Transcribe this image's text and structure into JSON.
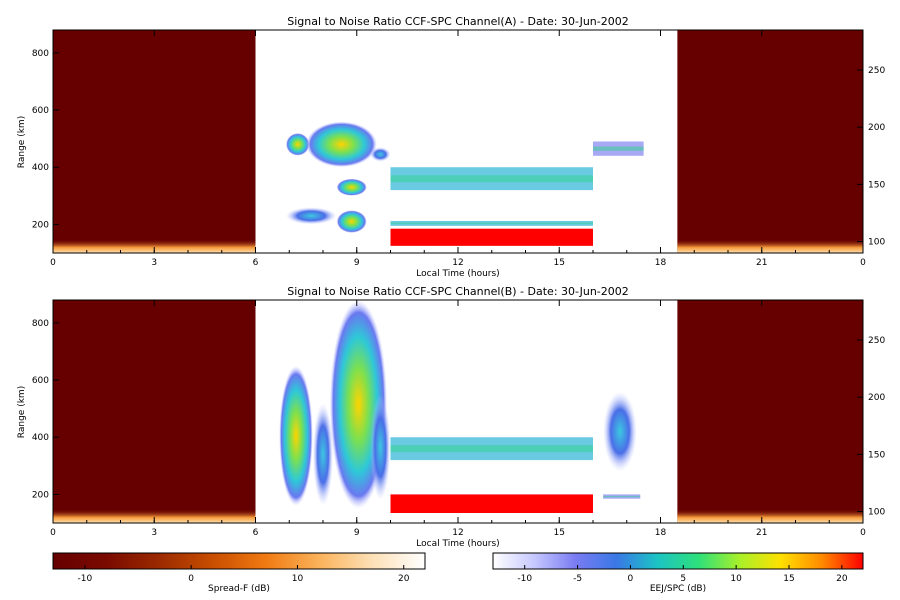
{
  "chart_data": [
    {
      "type": "heatmap",
      "title": "Signal to Noise Ratio CCF-SPC Channel(A) - Date: 30-Jun-2002",
      "xlabel": "Local Time (hours)",
      "ylabel": "Range (km)",
      "x_tick_labels": [
        "0",
        "3",
        "6",
        "9",
        "12",
        "15",
        "18",
        "21",
        "0"
      ],
      "x_ticks_hours": [
        0,
        3,
        6,
        9,
        12,
        15,
        18,
        21,
        24
      ],
      "xlim_hours": [
        0,
        24
      ],
      "ylim_left": [
        100,
        880
      ],
      "y_left_ticks": [
        200,
        400,
        600,
        800
      ],
      "ylim_right": [
        90,
        285
      ],
      "y_right_ticks": [
        100,
        150,
        200,
        250
      ],
      "regions": {
        "spreadF_night": [
          [
            0,
            6
          ],
          [
            18.5,
            24
          ]
        ],
        "ejspc_day": [
          6,
          18.5
        ]
      },
      "echoes": [
        {
          "kind": "blob",
          "t": [
            6.9,
            7.6
          ],
          "r": [
            440,
            520
          ],
          "level": 0.35
        },
        {
          "kind": "blob",
          "t": [
            7.5,
            9.6
          ],
          "r": [
            400,
            560
          ],
          "level": 0.55
        },
        {
          "kind": "blob",
          "t": [
            8.4,
            9.3
          ],
          "r": [
            300,
            360
          ],
          "level": 0.35
        },
        {
          "kind": "blob",
          "t": [
            8.4,
            9.3
          ],
          "r": [
            170,
            250
          ],
          "level": 0.35
        },
        {
          "kind": "blob",
          "t": [
            6.9,
            8.4
          ],
          "r": [
            200,
            260
          ],
          "level": 0.25
        },
        {
          "kind": "blob",
          "t": [
            9.4,
            10.0
          ],
          "r": [
            420,
            470
          ],
          "level": 0.25
        },
        {
          "kind": "band",
          "t": [
            10.0,
            16.0
          ],
          "r": [
            320,
            400
          ],
          "level": 0.3
        },
        {
          "kind": "band",
          "t": [
            16.0,
            17.5
          ],
          "r": [
            440,
            490
          ],
          "level": 0.1
        },
        {
          "kind": "band",
          "t": [
            10.0,
            16.0
          ],
          "r": [
            195,
            212
          ],
          "level": 0.3
        },
        {
          "kind": "rect",
          "t": [
            10.0,
            16.0
          ],
          "r": [
            125,
            185
          ],
          "level": 1.0
        }
      ]
    },
    {
      "type": "heatmap",
      "title": "Signal to Noise Ratio CCF-SPC Channel(B) - Date: 30-Jun-2002",
      "xlabel": "Local Time (hours)",
      "ylabel": "Range (km)",
      "x_tick_labels": [
        "0",
        "3",
        "6",
        "9",
        "12",
        "15",
        "18",
        "21",
        "0"
      ],
      "x_ticks_hours": [
        0,
        3,
        6,
        9,
        12,
        15,
        18,
        21,
        24
      ],
      "xlim_hours": [
        0,
        24
      ],
      "ylim_left": [
        100,
        880
      ],
      "y_left_ticks": [
        200,
        400,
        600,
        800
      ],
      "ylim_right": [
        90,
        285
      ],
      "y_right_ticks": [
        100,
        150,
        200,
        250
      ],
      "regions": {
        "spreadF_night": [
          [
            0,
            6
          ],
          [
            18.5,
            24
          ]
        ],
        "ejspc_day": [
          6,
          18.5
        ]
      },
      "echoes": [
        {
          "kind": "blob",
          "t": [
            6.7,
            7.7
          ],
          "r": [
            160,
            650
          ],
          "level": 0.45
        },
        {
          "kind": "blob",
          "t": [
            7.7,
            8.3
          ],
          "r": [
            160,
            520
          ],
          "level": 0.3
        },
        {
          "kind": "blob",
          "t": [
            8.2,
            9.9
          ],
          "r": [
            150,
            880
          ],
          "level": 0.7
        },
        {
          "kind": "blob",
          "t": [
            9.4,
            10.0
          ],
          "r": [
            180,
            550
          ],
          "level": 0.2
        },
        {
          "kind": "band",
          "t": [
            10.0,
            16.0
          ],
          "r": [
            320,
            400
          ],
          "level": 0.3
        },
        {
          "kind": "blob",
          "t": [
            16.3,
            17.3
          ],
          "r": [
            280,
            560
          ],
          "level": 0.3
        },
        {
          "kind": "band",
          "t": [
            16.3,
            17.4
          ],
          "r": [
            185,
            200
          ],
          "level": 0.15
        },
        {
          "kind": "rect",
          "t": [
            10.0,
            16.0
          ],
          "r": [
            135,
            200
          ],
          "level": 1.0
        }
      ]
    }
  ],
  "colorbars": [
    {
      "label": "Spread-F (dB)",
      "range": [
        -13,
        22
      ],
      "tick_values": [
        -10,
        0,
        10,
        20
      ],
      "tick_labels": [
        "-10",
        "0",
        "10",
        "20"
      ],
      "colors": [
        "#660000",
        "#7a0a00",
        "#9b2a00",
        "#c84e00",
        "#f07a12",
        "#fbb25a",
        "#fde0b6",
        "#ffffff"
      ]
    },
    {
      "label": "EEJ/SPC (dB)",
      "range": [
        -13,
        22
      ],
      "tick_values": [
        -10,
        -5,
        0,
        5,
        10,
        15,
        20
      ],
      "tick_labels": [
        "-10",
        "-5",
        "0",
        "5",
        "10",
        "15",
        "20"
      ],
      "colors": [
        "#ffffff",
        "#c6c8ff",
        "#7a7cf2",
        "#3a78e6",
        "#1cc4c4",
        "#2ee07a",
        "#a8f02a",
        "#ffe000",
        "#ff8a00",
        "#ff0000"
      ]
    }
  ]
}
